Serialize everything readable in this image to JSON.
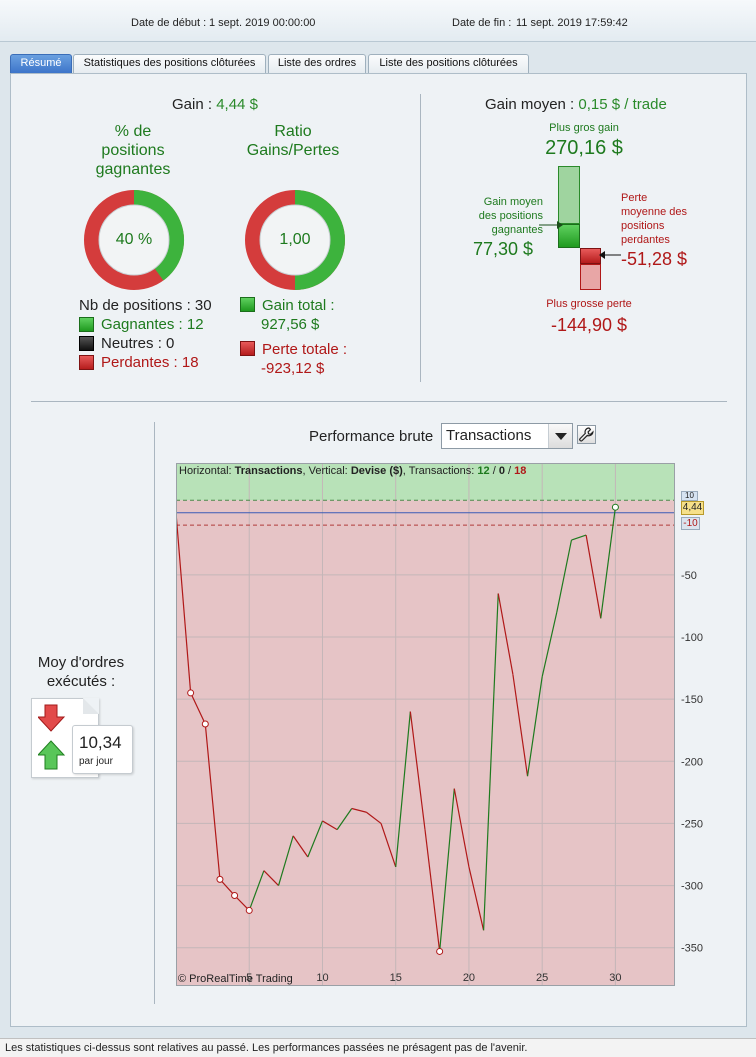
{
  "header": {
    "start_label": "Date de début :",
    "start_value": "1 sept. 2019 00:00:00",
    "end_label": "Date de fin :",
    "end_value": "11 sept. 2019 17:59:42"
  },
  "tabs": [
    {
      "label": "Résumé",
      "active": true
    },
    {
      "label": "Statistiques des positions clôturées",
      "active": false
    },
    {
      "label": "Liste des ordres",
      "active": false
    },
    {
      "label": "Liste des positions clôturées",
      "active": false
    }
  ],
  "summary": {
    "gain_label": "Gain :",
    "gain_value": "4,44 $",
    "win_pct": {
      "title_line1": "% de",
      "title_line2": "positions",
      "title_line3": "gagnantes",
      "value": "40 %",
      "fraction": 0.4
    },
    "ratio": {
      "title_line1": "Ratio",
      "title_line2": "Gains/Pertes",
      "value": "1,00",
      "fraction": 0.5
    },
    "positions": {
      "count_label": "Nb de positions : 30",
      "winning": "Gagnantes : 12",
      "neutral": "Neutres : 0",
      "losing": "Perdantes : 18"
    },
    "totals": {
      "gain_label": "Gain total :",
      "gain_value": "927,56 $",
      "loss_label": "Perte totale :",
      "loss_value": "-923,12 $"
    }
  },
  "avg_gain": {
    "label": "Gain moyen :",
    "value": "0,15 $ / trade",
    "biggest_gain_label": "Plus gros gain",
    "biggest_gain_value": "270,16 $",
    "avg_win_label_line1": "Gain moyen",
    "avg_win_label_line2": "des positions",
    "avg_win_label_line3": "gagnantes",
    "avg_win_value": "77,30 $",
    "avg_loss_label_line1": "Perte",
    "avg_loss_label_line2": "moyenne des",
    "avg_loss_label_line3": "positions",
    "avg_loss_label_line4": "perdantes",
    "avg_loss_value": "-51,28 $",
    "biggest_loss_label": "Plus grosse perte",
    "biggest_loss_value": "-144,90 $"
  },
  "orders": {
    "label_line1": "Moy d'ordres",
    "label_line2": "exécutés :",
    "value": "10,34",
    "unit": "par jour"
  },
  "performance": {
    "title": "Performance brute",
    "select_value": "Transactions",
    "wrench_icon": "wrench-icon",
    "info_horizontal_label": "Horizontal:",
    "info_horizontal_value": "Transactions",
    "info_vertical_label": ", Vertical:",
    "info_vertical_value": "Devise ($)",
    "info_tx_label": ", Transactions:",
    "info_tx_win": "12",
    "info_tx_neutral": "0",
    "info_tx_loss": "18",
    "info_sep": "/",
    "copyright": "© ProRealTime Trading",
    "last_value_label": "4,44",
    "upper_dashed_label": "10",
    "lower_dashed_label": "-10"
  },
  "chart_data": {
    "type": "line",
    "title": "Performance brute",
    "xlabel": "",
    "ylabel": "",
    "xlim": [
      0,
      34
    ],
    "ylim": [
      -380,
      40
    ],
    "xticks": [
      5,
      10,
      15,
      20,
      25,
      30
    ],
    "yticks": [
      -50,
      -100,
      -150,
      -200,
      -250,
      -300,
      -350
    ],
    "x": [
      0,
      1,
      2,
      3,
      4,
      5,
      6,
      7,
      8,
      9,
      10,
      11,
      12,
      13,
      14,
      15,
      16,
      17,
      18,
      19,
      20,
      21,
      22,
      23,
      24,
      25,
      26,
      27,
      28,
      29,
      30
    ],
    "y": [
      0,
      -145,
      -170,
      -295,
      -308,
      -320,
      -288,
      -300,
      -260,
      -277,
      -248,
      -255,
      -238,
      -241,
      -250,
      -285,
      -160,
      -255,
      -353,
      -222,
      -285,
      -336,
      -65,
      -130,
      -212,
      -132,
      -80,
      -22,
      -18,
      -85,
      4.44
    ],
    "markers_at": [
      1,
      2,
      3,
      4,
      5,
      18,
      30
    ],
    "baseline": 0,
    "upper_band": 10,
    "lower_band": -10,
    "colors": {
      "up": "#1e7a1e",
      "down": "#b01818",
      "baseline": "#3b5bb5",
      "profit_zone": "#b8e2b8",
      "loss_zone": "#e6c4c6"
    }
  },
  "footer": {
    "text": "Les statistiques ci-dessus sont relatives au passé. Les performances passées ne présagent pas de l'avenir."
  }
}
